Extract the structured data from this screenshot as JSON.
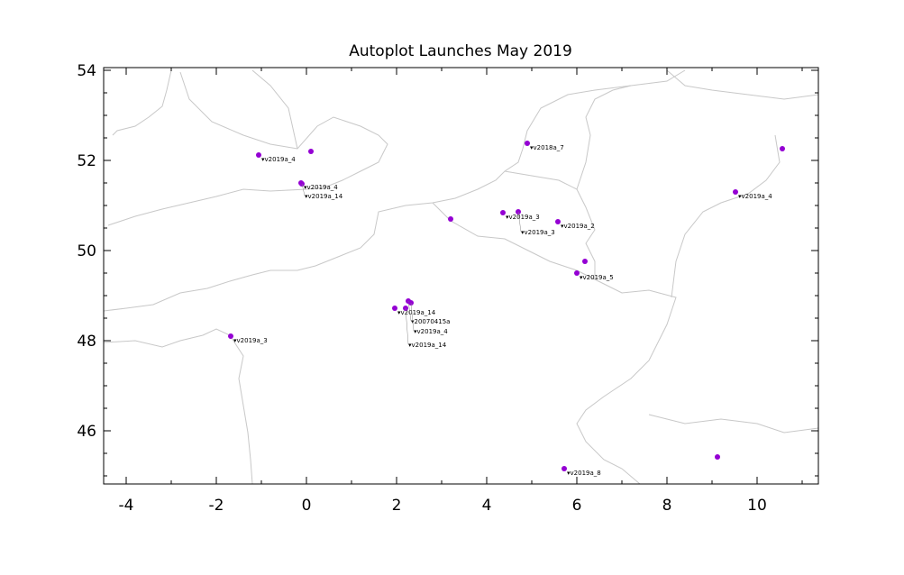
{
  "chart_data": {
    "type": "scatter",
    "title": "Autoplot Launches May 2019",
    "xlabel": "",
    "ylabel": "",
    "xlim": [
      -4.5,
      11.36
    ],
    "ylim": [
      44.82,
      54.06
    ],
    "x_ticks": [
      -4,
      -2,
      0,
      2,
      4,
      6,
      8,
      10
    ],
    "y_ticks": [
      46,
      48,
      50,
      52,
      54
    ],
    "grid": false,
    "background": "map coastlines and borders (western Europe)",
    "marker_color": "#9400d3",
    "points": [
      {
        "x": -1.06,
        "y": 52.12,
        "label": "v2019a_4"
      },
      {
        "x": 0.1,
        "y": 52.2,
        "label": ""
      },
      {
        "x": -0.12,
        "y": 51.5,
        "label": "v2019a_4"
      },
      {
        "x": -0.1,
        "y": 51.48,
        "label": "v2019a_14"
      },
      {
        "x": 3.2,
        "y": 50.7,
        "label": ""
      },
      {
        "x": 4.36,
        "y": 50.84,
        "label": "v2019a_3"
      },
      {
        "x": 4.7,
        "y": 50.86,
        "label": "v2019a_3"
      },
      {
        "x": 5.58,
        "y": 50.64,
        "label": "v2019a_2"
      },
      {
        "x": 4.9,
        "y": 52.38,
        "label": "v2018a_7"
      },
      {
        "x": 6.18,
        "y": 49.76,
        "label": ""
      },
      {
        "x": 6.0,
        "y": 49.5,
        "label": "v2019a_5"
      },
      {
        "x": 10.56,
        "y": 52.26,
        "label": ""
      },
      {
        "x": 9.52,
        "y": 51.3,
        "label": "v2019a_4"
      },
      {
        "x": -1.68,
        "y": 48.1,
        "label": "v2019a_3"
      },
      {
        "x": 5.72,
        "y": 45.16,
        "label": "v2019a_8"
      },
      {
        "x": 9.12,
        "y": 45.42,
        "label": ""
      },
      {
        "x": 1.96,
        "y": 48.72,
        "label": "v2019a_14"
      },
      {
        "x": 2.26,
        "y": 48.88,
        "label": "20070415a"
      },
      {
        "x": 2.32,
        "y": 48.84,
        "label": "v2019a_4"
      },
      {
        "x": 2.2,
        "y": 48.72,
        "label": "v2019a_14"
      }
    ]
  }
}
